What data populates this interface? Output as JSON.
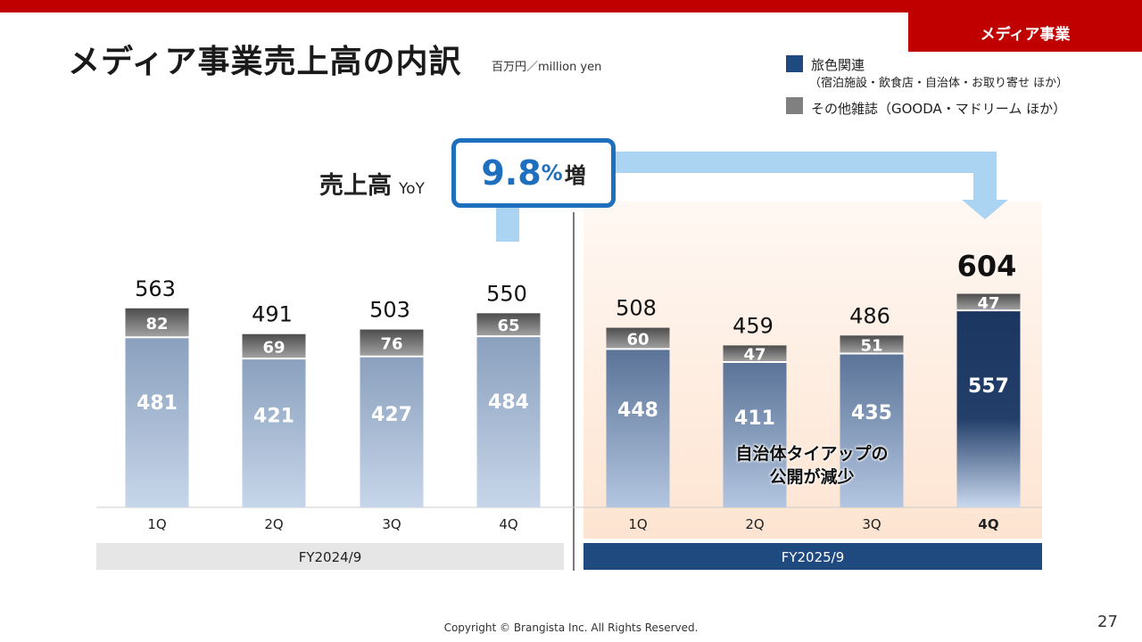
{
  "header": {
    "tag": "メディア事業",
    "title": "メディア事業売上高の内訳",
    "unit": "百万円／million yen"
  },
  "legend": [
    {
      "label": "旅色関連",
      "sub": "（宿泊施設・飲食店・自治体・お取り寄せ ほか）",
      "color": "#1f4a80"
    },
    {
      "label": "その他雑誌（GOODA・マドリーム ほか）",
      "sub": "",
      "color": "#808080"
    }
  ],
  "yoy": {
    "label": "売上高",
    "suffix": "YoY",
    "value": "9.8",
    "percent": "%",
    "increase": "増"
  },
  "annotation": {
    "line1": "自治体タイアップの",
    "line2": "公開が減少"
  },
  "colors": {
    "accent_red": "#c00000",
    "fy2024_band": "#e6e6e6",
    "fy2025_band": "#1f4a80",
    "highlight_bar": "#1f3a63",
    "callout_blue": "#1f6fbf",
    "arrow_blue": "#aad4f2"
  },
  "chart_data": {
    "type": "bar",
    "stacked": true,
    "title": "メディア事業売上高の内訳",
    "ylabel": "百万円／million yen",
    "ylim": [
      0,
      650
    ],
    "categories": [
      "1Q",
      "2Q",
      "3Q",
      "4Q",
      "1Q",
      "2Q",
      "3Q",
      "4Q"
    ],
    "groups": [
      {
        "label": "FY2024/9",
        "categories": [
          0,
          1,
          2,
          3
        ]
      },
      {
        "label": "FY2025/9",
        "categories": [
          4,
          5,
          6,
          7
        ]
      }
    ],
    "series": [
      {
        "name": "旅色関連",
        "values": [
          481,
          421,
          427,
          484,
          448,
          411,
          435,
          557
        ]
      },
      {
        "name": "その他雑誌",
        "values": [
          82,
          69,
          76,
          65,
          60,
          47,
          51,
          47
        ]
      }
    ],
    "totals": [
      563,
      491,
      503,
      550,
      508,
      459,
      486,
      604
    ],
    "highlight_index": 7
  },
  "footer": {
    "copyright": "Copyright © Brangista Inc. All Rights Reserved.",
    "page": "27"
  }
}
